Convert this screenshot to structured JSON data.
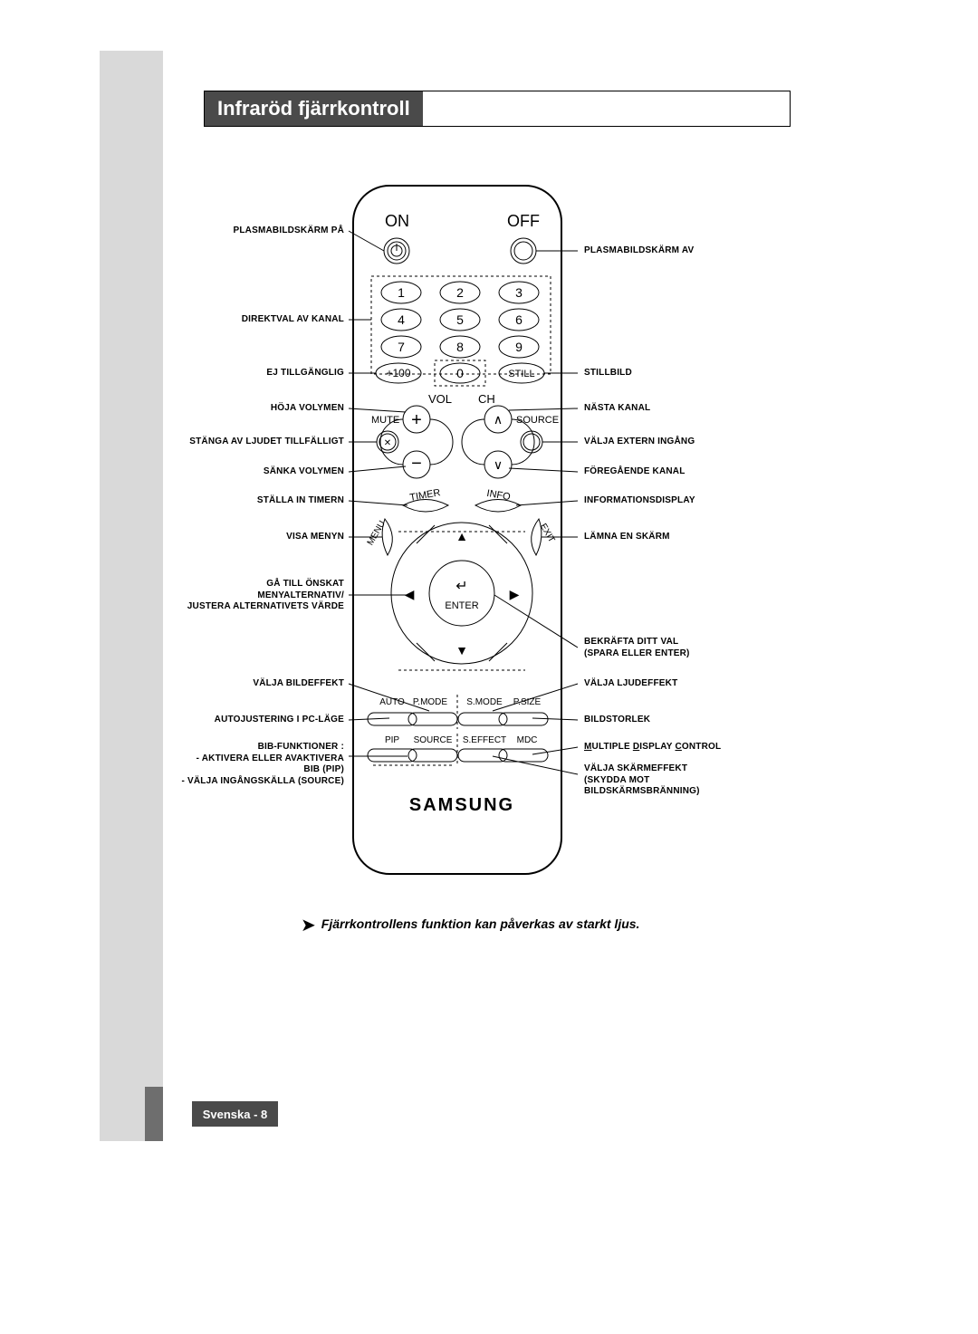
{
  "title": "Infraröd fjärrkontroll",
  "footnote": "Fjärrkontrollens funktion kan påverkas av starkt ljus.",
  "page_label": "Svenska - 8",
  "brand": "SAMSUNG",
  "remote": {
    "on": "ON",
    "off": "OFF",
    "nums": [
      "1",
      "2",
      "3",
      "4",
      "5",
      "6",
      "7",
      "8",
      "9",
      "0"
    ],
    "plus100": "+100",
    "still": "STILL",
    "vol": "VOL",
    "ch": "CH",
    "mute": "MUTE",
    "source": "SOURCE",
    "timer": "TIMER",
    "info": "INFO",
    "menu": "MENU",
    "exit": "EXIT",
    "enter": "ENTER",
    "row1": [
      "AUTO",
      "P.MODE",
      "S.MODE",
      "P.SIZE"
    ],
    "row2": [
      "PIP",
      "SOURCE",
      "S.EFFECT",
      "MDC"
    ]
  },
  "labels": {
    "left": {
      "plasma_on": "PLASMABILDSKÄRM PÅ",
      "direct_channel": "DIREKTVAL AV KANAL",
      "not_available": "EJ TILLGÄNGLIG",
      "vol_up": "HÖJA VOLYMEN",
      "mute_tmp": "STÄNGA AV LJUDET TILLFÄLLIGT",
      "vol_down": "SÄNKA VOLYMEN",
      "set_timer": "STÄLLA IN TIMERN",
      "show_menu": "VISA MENYN",
      "nav": "GÅ TILL ÖNSKAT\nMENYALTERNATIV/\nJUSTERA ALTERNATIVETS VÄRDE",
      "pic_effect": "VÄLJA BILDEFFEKT",
      "auto_pc": "AUTOJUSTERING I PC-LÄGE",
      "pip": "BIB-FUNKTIONER :\n-  AKTIVERA ELLER AVAKTIVERA\nBIB (PIP)\n-  VÄLJA INGÅNGSKÄLLA (SOURCE)"
    },
    "right": {
      "plasma_off": "PLASMABILDSKÄRM AV",
      "still": "STILLBILD",
      "next_ch": "NÄSTA KANAL",
      "ext_in": "VÄLJA EXTERN INGÅNG",
      "prev_ch": "FÖREGÅENDE KANAL",
      "info": "INFORMATIONSDISPLAY",
      "exit": "LÄMNA EN SKÄRM",
      "confirm": "BEKRÄFTA DITT VAL\n(SPARA ELLER ENTER)",
      "snd_effect": "VÄLJA LJUDEFFEKT",
      "pic_size": "BILDSTORLEK",
      "mdc_line": "<u>M</u>ULTIPLE <u>D</u>ISPLAY <u>C</u>ONTROL",
      "scr_effect": "VÄLJA SKÄRMEFFEKT\n(SKYDDA MOT\nBILDSKÄRMSBRÄNNING)"
    }
  },
  "colors": {
    "outline": "#000000",
    "dash": "#000000",
    "gray": "#d9d9d9",
    "dark": "#4a4a4a"
  }
}
